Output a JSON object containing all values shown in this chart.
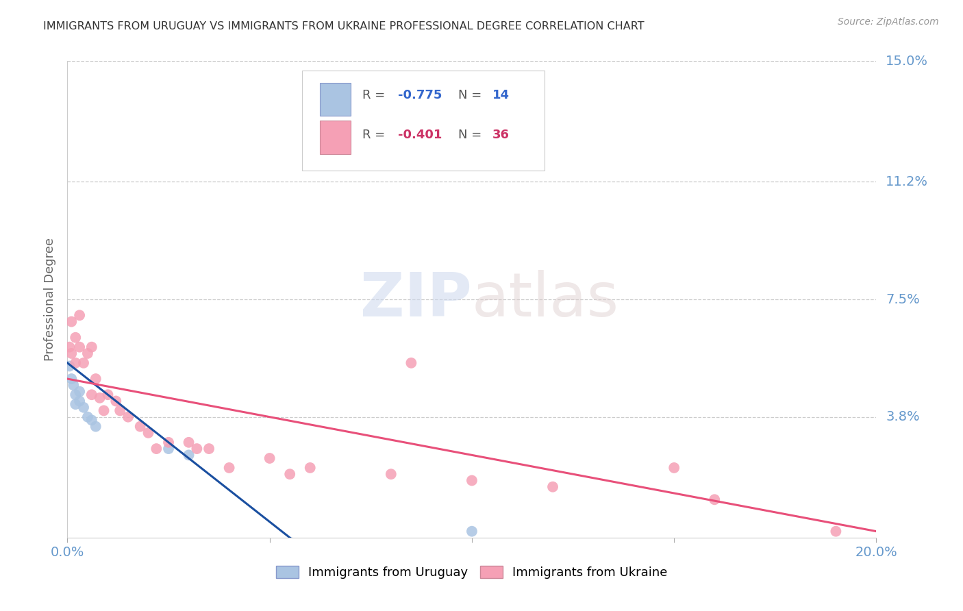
{
  "title": "IMMIGRANTS FROM URUGUAY VS IMMIGRANTS FROM UKRAINE PROFESSIONAL DEGREE CORRELATION CHART",
  "source": "Source: ZipAtlas.com",
  "ylabel": "Professional Degree",
  "watermark_zip": "ZIP",
  "watermark_atlas": "atlas",
  "xlim": [
    0.0,
    0.2
  ],
  "ylim": [
    0.0,
    0.15
  ],
  "xtick_values": [
    0.0,
    0.05,
    0.1,
    0.15,
    0.2
  ],
  "xticklabels": [
    "0.0%",
    "",
    "",
    "",
    "20.0%"
  ],
  "ytick_values": [
    0.038,
    0.075,
    0.112,
    0.15
  ],
  "ytick_labels": [
    "3.8%",
    "7.5%",
    "11.2%",
    "15.0%"
  ],
  "legend1_r": "-0.775",
  "legend1_n": "14",
  "legend2_r": "-0.401",
  "legend2_n": "36",
  "legend_label1": "Immigrants from Uruguay",
  "legend_label2": "Immigrants from Ukraine",
  "uruguay_color": "#aac4e2",
  "ukraine_color": "#f5a0b5",
  "uruguay_line_color": "#1a4fa0",
  "ukraine_line_color": "#e8507a",
  "background_color": "#ffffff",
  "grid_color": "#cccccc",
  "title_color": "#333333",
  "axis_label_color": "#666666",
  "right_tick_color": "#6699cc",
  "uruguay_x": [
    0.0005,
    0.001,
    0.0015,
    0.002,
    0.002,
    0.003,
    0.003,
    0.004,
    0.005,
    0.006,
    0.007,
    0.025,
    0.03,
    0.1
  ],
  "uruguay_y": [
    0.054,
    0.05,
    0.048,
    0.045,
    0.042,
    0.046,
    0.043,
    0.041,
    0.038,
    0.037,
    0.035,
    0.028,
    0.026,
    0.002
  ],
  "ukraine_x": [
    0.0005,
    0.001,
    0.001,
    0.002,
    0.002,
    0.003,
    0.003,
    0.004,
    0.005,
    0.006,
    0.006,
    0.007,
    0.008,
    0.009,
    0.01,
    0.012,
    0.013,
    0.015,
    0.018,
    0.02,
    0.022,
    0.025,
    0.03,
    0.032,
    0.035,
    0.04,
    0.05,
    0.055,
    0.06,
    0.08,
    0.085,
    0.1,
    0.12,
    0.15,
    0.16,
    0.19
  ],
  "ukraine_y": [
    0.06,
    0.068,
    0.058,
    0.063,
    0.055,
    0.06,
    0.07,
    0.055,
    0.058,
    0.06,
    0.045,
    0.05,
    0.044,
    0.04,
    0.045,
    0.043,
    0.04,
    0.038,
    0.035,
    0.033,
    0.028,
    0.03,
    0.03,
    0.028,
    0.028,
    0.022,
    0.025,
    0.02,
    0.022,
    0.02,
    0.055,
    0.018,
    0.016,
    0.022,
    0.012,
    0.002
  ],
  "uru_line_x": [
    0.0,
    0.055
  ],
  "uru_line_y": [
    0.055,
    0.0
  ],
  "ukr_line_x": [
    0.0,
    0.2
  ],
  "ukr_line_y": [
    0.05,
    0.002
  ]
}
